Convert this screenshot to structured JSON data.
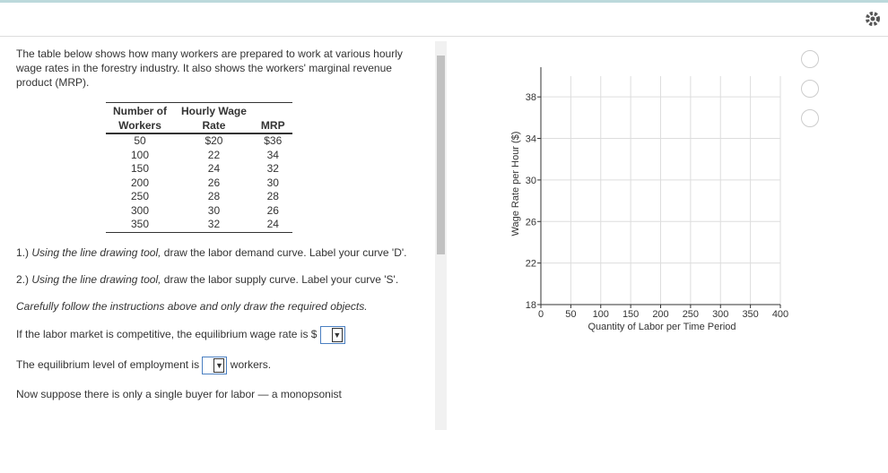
{
  "question": {
    "intro": "The table below shows how many workers are prepared to work at various hourly wage rates in the forestry industry. It also shows the workers' marginal revenue product (MRP).",
    "table": {
      "headers": [
        [
          "Number of",
          "Workers"
        ],
        [
          "Hourly Wage",
          "Rate"
        ],
        [
          "MRP"
        ]
      ],
      "rows": [
        [
          "50",
          "$20",
          "$36"
        ],
        [
          "100",
          "22",
          "34"
        ],
        [
          "150",
          "24",
          "32"
        ],
        [
          "200",
          "26",
          "30"
        ],
        [
          "250",
          "28",
          "28"
        ],
        [
          "300",
          "30",
          "26"
        ],
        [
          "350",
          "32",
          "24"
        ]
      ]
    },
    "steps": [
      {
        "number": "1.)",
        "emphasis": "Using the line drawing tool,",
        "text": "draw the labor demand curve. Label your curve 'D'."
      },
      {
        "number": "2.)",
        "emphasis": "Using the line drawing tool,",
        "text": "draw the labor supply curve. Label your curve 'S'."
      }
    ],
    "note": "Carefully follow the instructions above and only draw the required objects.",
    "wage_prompt": "If the labor market is competitive, the equilibrium wage rate is $",
    "employment_prompt": "The equilibrium level of employment is",
    "employment_unit": "workers.",
    "next_text": "Now suppose there is only a single buyer for labor — a monopsonist"
  },
  "graph": {
    "type": "line",
    "y_label": "Wage Rate per Hour ($)",
    "x_label": "Quantity of Labor per Time Period",
    "xlim": [
      0,
      400
    ],
    "xticks": [
      0,
      50,
      100,
      150,
      200,
      250,
      300,
      350,
      400
    ],
    "ylim": [
      18,
      40
    ],
    "yticks": [
      18,
      22,
      26,
      30,
      34,
      38
    ],
    "grid": true
  }
}
